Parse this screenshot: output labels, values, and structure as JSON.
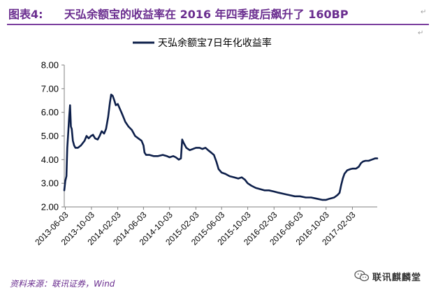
{
  "figure": {
    "label": "图表4:",
    "title": "天弘余额宝的收益率在 2016 年四季度后飙升了 160BP"
  },
  "source_note": "资料来源：联讯证券，Wind",
  "watermark": {
    "text": "联讯麒麟堂",
    "icon": "wechat-icon"
  },
  "colors": {
    "accent": "#6a2d8f",
    "series": "#0d1f4a"
  },
  "chart_data": {
    "type": "line",
    "legend": "top-center",
    "grid": false,
    "x_ticks": [
      "2013-06-03",
      "2013-10-03",
      "2014-02-03",
      "2014-06-03",
      "2014-10-03",
      "2015-02-03",
      "2015-06-03",
      "2015-10-03",
      "2016-02-03",
      "2016-06-03",
      "2016-10-03",
      "2017-02-03"
    ],
    "y_ticks": [
      "2.00",
      "3.00",
      "4.00",
      "5.00",
      "6.00",
      "7.00",
      "8.00"
    ],
    "ylim": [
      2,
      8
    ],
    "xlim": [
      "2013-05-29",
      "2017-05-30"
    ],
    "series": [
      {
        "name": "天弘余额宝7日年化收益率",
        "points": [
          [
            "2013-05-29",
            2.7
          ],
          [
            "2013-06-03",
            3.1
          ],
          [
            "2013-06-08",
            3.3
          ],
          [
            "2013-06-12",
            4.5
          ],
          [
            "2013-06-17",
            5.2
          ],
          [
            "2013-06-21",
            5.8
          ],
          [
            "2013-06-25",
            6.3
          ],
          [
            "2013-06-29",
            5.4
          ],
          [
            "2013-07-03",
            5.3
          ],
          [
            "2013-07-08",
            4.8
          ],
          [
            "2013-07-14",
            4.6
          ],
          [
            "2013-07-20",
            4.5
          ],
          [
            "2013-08-01",
            4.5
          ],
          [
            "2013-08-15",
            4.6
          ],
          [
            "2013-09-01",
            4.8
          ],
          [
            "2013-09-10",
            5.0
          ],
          [
            "2013-09-20",
            4.9
          ],
          [
            "2013-10-01",
            5.0
          ],
          [
            "2013-10-10",
            5.05
          ],
          [
            "2013-10-20",
            4.9
          ],
          [
            "2013-11-01",
            4.85
          ],
          [
            "2013-11-10",
            5.0
          ],
          [
            "2013-11-20",
            5.2
          ],
          [
            "2013-12-01",
            5.1
          ],
          [
            "2013-12-10",
            5.3
          ],
          [
            "2013-12-20",
            5.8
          ],
          [
            "2013-12-28",
            6.4
          ],
          [
            "2014-01-03",
            6.75
          ],
          [
            "2014-01-10",
            6.7
          ],
          [
            "2014-01-18",
            6.5
          ],
          [
            "2014-01-25",
            6.3
          ],
          [
            "2014-02-03",
            6.35
          ],
          [
            "2014-02-10",
            6.2
          ],
          [
            "2014-02-20",
            6.0
          ],
          [
            "2014-03-01",
            5.8
          ],
          [
            "2014-03-10",
            5.6
          ],
          [
            "2014-03-25",
            5.4
          ],
          [
            "2014-04-10",
            5.25
          ],
          [
            "2014-04-25",
            5.0
          ],
          [
            "2014-05-10",
            4.9
          ],
          [
            "2014-05-25",
            4.8
          ],
          [
            "2014-06-03",
            4.6
          ],
          [
            "2014-06-08",
            4.3
          ],
          [
            "2014-06-15",
            4.2
          ],
          [
            "2014-07-01",
            4.2
          ],
          [
            "2014-07-20",
            4.15
          ],
          [
            "2014-08-10",
            4.15
          ],
          [
            "2014-09-01",
            4.2
          ],
          [
            "2014-09-20",
            4.15
          ],
          [
            "2014-10-03",
            4.1
          ],
          [
            "2014-10-20",
            4.15
          ],
          [
            "2014-11-01",
            4.1
          ],
          [
            "2014-11-15",
            4.0
          ],
          [
            "2014-11-25",
            4.05
          ],
          [
            "2014-12-01",
            4.85
          ],
          [
            "2014-12-08",
            4.7
          ],
          [
            "2014-12-20",
            4.5
          ],
          [
            "2015-01-05",
            4.4
          ],
          [
            "2015-01-20",
            4.45
          ],
          [
            "2015-02-03",
            4.5
          ],
          [
            "2015-02-20",
            4.5
          ],
          [
            "2015-03-05",
            4.45
          ],
          [
            "2015-03-20",
            4.5
          ],
          [
            "2015-04-01",
            4.4
          ],
          [
            "2015-04-15",
            4.3
          ],
          [
            "2015-04-28",
            4.2
          ],
          [
            "2015-05-10",
            3.9
          ],
          [
            "2015-05-20",
            3.6
          ],
          [
            "2015-06-03",
            3.45
          ],
          [
            "2015-06-20",
            3.4
          ],
          [
            "2015-07-10",
            3.3
          ],
          [
            "2015-08-01",
            3.25
          ],
          [
            "2015-08-20",
            3.2
          ],
          [
            "2015-09-05",
            3.25
          ],
          [
            "2015-09-20",
            3.15
          ],
          [
            "2015-10-03",
            3.0
          ],
          [
            "2015-10-20",
            2.9
          ],
          [
            "2015-11-10",
            2.8
          ],
          [
            "2015-12-01",
            2.75
          ],
          [
            "2015-12-20",
            2.7
          ],
          [
            "2016-01-10",
            2.7
          ],
          [
            "2016-02-03",
            2.65
          ],
          [
            "2016-02-25",
            2.6
          ],
          [
            "2016-03-20",
            2.55
          ],
          [
            "2016-04-15",
            2.5
          ],
          [
            "2016-05-10",
            2.45
          ],
          [
            "2016-06-03",
            2.45
          ],
          [
            "2016-06-30",
            2.4
          ],
          [
            "2016-07-25",
            2.4
          ],
          [
            "2016-08-20",
            2.35
          ],
          [
            "2016-09-15",
            2.3
          ],
          [
            "2016-10-03",
            2.3
          ],
          [
            "2016-10-20",
            2.35
          ],
          [
            "2016-11-10",
            2.4
          ],
          [
            "2016-11-25",
            2.5
          ],
          [
            "2016-12-05",
            2.6
          ],
          [
            "2016-12-12",
            2.9
          ],
          [
            "2016-12-20",
            3.2
          ],
          [
            "2016-12-28",
            3.4
          ],
          [
            "2017-01-10",
            3.55
          ],
          [
            "2017-01-25",
            3.6
          ],
          [
            "2017-02-03",
            3.62
          ],
          [
            "2017-02-20",
            3.62
          ],
          [
            "2017-03-05",
            3.7
          ],
          [
            "2017-03-15",
            3.85
          ],
          [
            "2017-03-25",
            3.92
          ],
          [
            "2017-04-05",
            3.95
          ],
          [
            "2017-04-20",
            3.95
          ],
          [
            "2017-05-05",
            4.0
          ],
          [
            "2017-05-20",
            4.05
          ],
          [
            "2017-05-30",
            4.05
          ]
        ]
      }
    ]
  }
}
